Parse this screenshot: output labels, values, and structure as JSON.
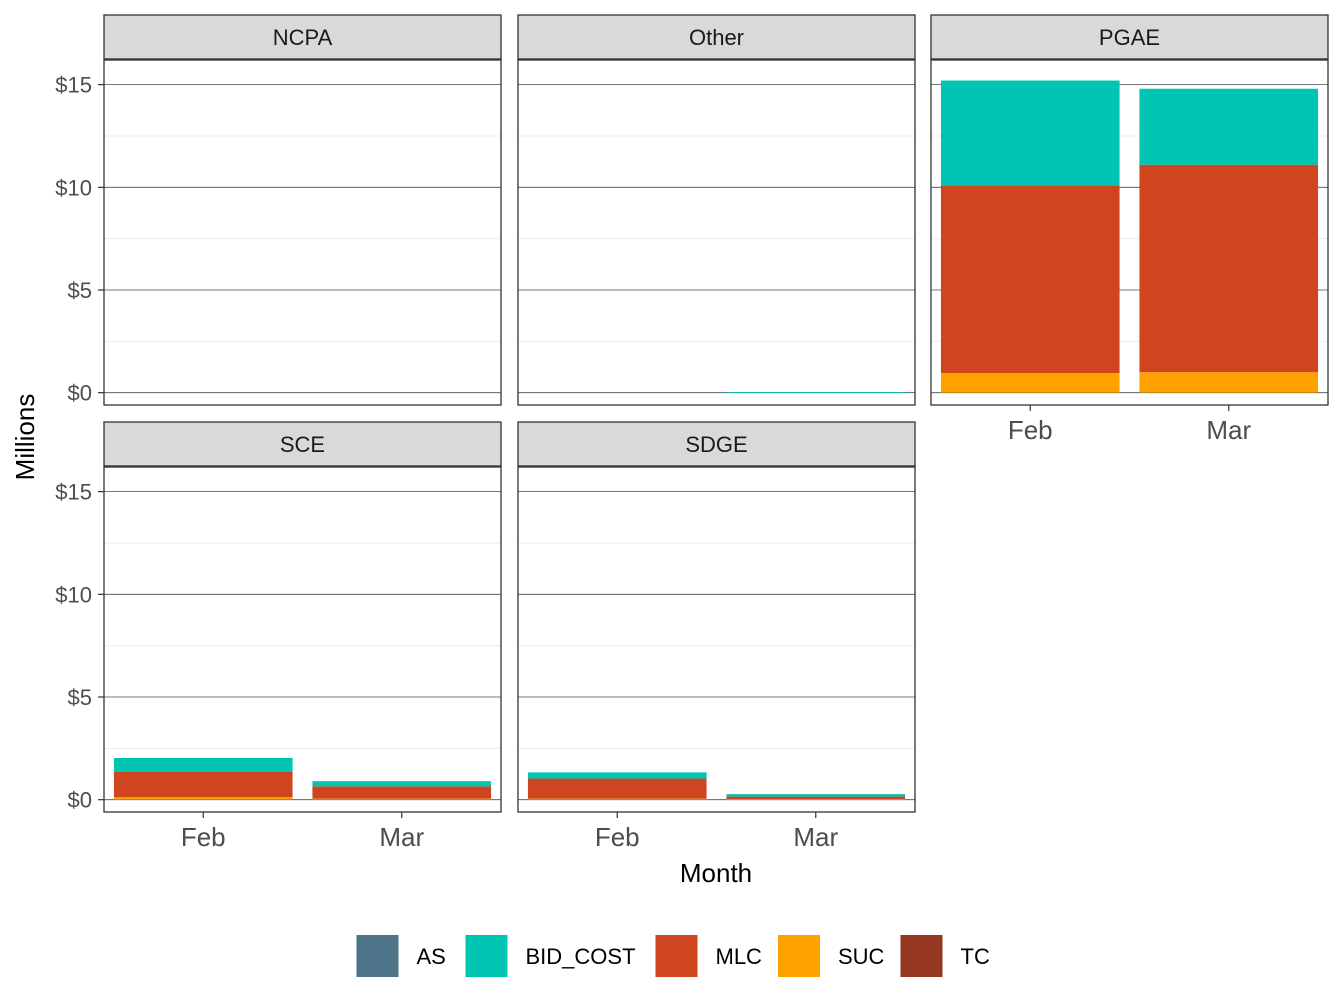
{
  "chart_data": {
    "type": "bar",
    "stacked": true,
    "faceted": true,
    "xlabel": "Month",
    "ylabel": "Millions",
    "ylim": [
      -0.6,
      16.2
    ],
    "y_ticks": [
      0,
      5,
      10,
      15
    ],
    "y_tick_labels": [
      "$0",
      "$5",
      "$10",
      "$15"
    ],
    "categories": [
      "Feb",
      "Mar"
    ],
    "legend_position": "bottom",
    "legend": [
      {
        "name": "AS",
        "color": "#4e7489"
      },
      {
        "name": "BID_COST",
        "color": "#00c5b3"
      },
      {
        "name": "MLC",
        "color": "#ce4520"
      },
      {
        "name": "SUC",
        "color": "#fea200"
      },
      {
        "name": "TC",
        "color": "#963722"
      }
    ],
    "stack_order": [
      "SUC",
      "MLC",
      "BID_COST"
    ],
    "panels": [
      {
        "title": "NCPA",
        "values": {
          "SUC": [
            0,
            0
          ],
          "MLC": [
            0,
            0
          ],
          "BID_COST": [
            0,
            0
          ]
        }
      },
      {
        "title": "Other",
        "values": {
          "SUC": [
            0,
            0
          ],
          "MLC": [
            0,
            0
          ],
          "BID_COST": [
            0,
            0.03
          ]
        }
      },
      {
        "title": "PGAE",
        "values": {
          "SUC": [
            0.95,
            1.0
          ],
          "MLC": [
            9.15,
            10.1
          ],
          "BID_COST": [
            5.1,
            3.7
          ]
        }
      },
      {
        "title": "SCE",
        "values": {
          "SUC": [
            0.12,
            0.05
          ],
          "MLC": [
            1.23,
            0.6
          ],
          "BID_COST": [
            0.68,
            0.25
          ]
        }
      },
      {
        "title": "SDGE",
        "values": {
          "SUC": [
            0.05,
            0.02
          ],
          "MLC": [
            0.98,
            0.13
          ],
          "BID_COST": [
            0.3,
            0.12
          ]
        }
      }
    ]
  }
}
